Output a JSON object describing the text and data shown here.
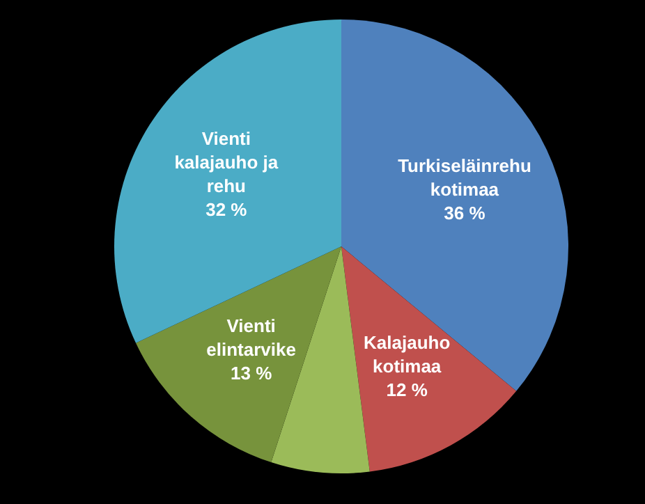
{
  "chart_data": {
    "type": "pie",
    "categories": [
      "Turkiseläinrehu\nkotimaa",
      "Kalajauho\nkotimaa",
      null,
      "Vienti\nelintarvike",
      "Vienti\nkalajauho ja\nrehu"
    ],
    "values": [
      36,
      12,
      7,
      13,
      32
    ],
    "value_labels": [
      "36 %",
      "12 %",
      null,
      "13 %",
      "32 %"
    ],
    "colors": [
      "#4f81bd",
      "#c0504d",
      "#9bbb59",
      "#77933c",
      "#4bacc6"
    ],
    "legend": false
  }
}
